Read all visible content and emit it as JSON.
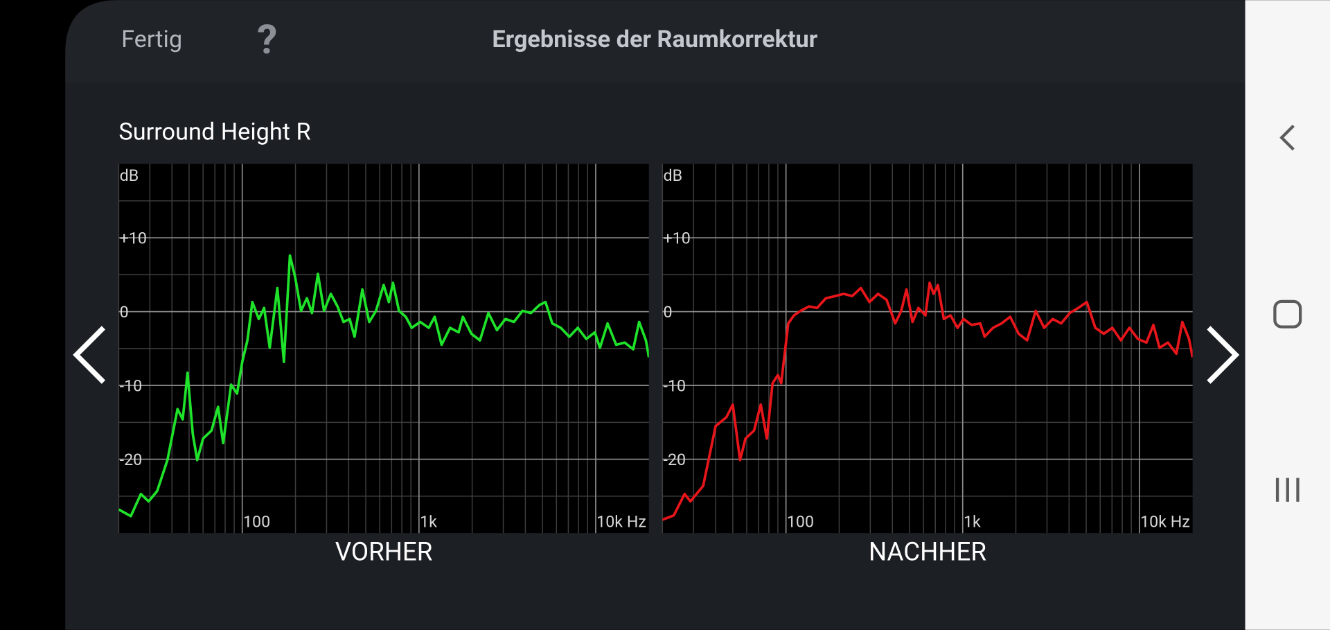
{
  "header": {
    "done": "Fertig",
    "help": "?",
    "title": "Ergebnisse der Raumkorrektur"
  },
  "channel": "Surround Height R",
  "chart_data": [
    {
      "type": "line",
      "title": "VORHER",
      "y_label": "dB",
      "log_x": true,
      "grid": true,
      "xlim": [
        20,
        20000
      ],
      "ylim": [
        -30,
        20
      ],
      "xticks": [
        100,
        {
          "value": 1000,
          "label": "1k"
        },
        {
          "value": 10000,
          "label": "10k Hz"
        }
      ],
      "xminor": [
        20,
        30,
        40,
        50,
        60,
        70,
        80,
        90,
        200,
        300,
        400,
        500,
        600,
        700,
        800,
        900,
        2000,
        3000,
        4000,
        5000,
        6000,
        7000,
        8000,
        9000
      ],
      "yticks": [
        -20,
        -10,
        0,
        {
          "value": 10,
          "label": "+10"
        }
      ],
      "yminor": [
        -25,
        -15,
        -5,
        5,
        15
      ],
      "x": [
        20,
        23.4,
        26.7,
        29.5,
        33,
        37.7,
        43,
        46,
        49,
        52.5,
        55.6,
        60,
        67,
        73,
        78,
        86.5,
        93.5,
        100,
        107,
        114,
        124,
        133,
        143,
        158,
        172,
        186,
        199,
        215,
        232,
        248,
        268,
        290,
        317,
        346,
        374,
        405,
        432,
        478,
        523,
        571,
        631,
        675,
        713,
        771,
        842,
        910,
        1016,
        1136,
        1227,
        1342,
        1500,
        1676,
        1772,
        1979,
        2213,
        2472,
        2762,
        3085,
        3446,
        3852,
        4303,
        4808,
        5200,
        5680,
        6345,
        7090,
        7920,
        8850,
        9890,
        10570,
        11680,
        13050,
        14590,
        16300,
        17620,
        19240,
        20000
      ],
      "series": [
        {
          "color": "#1fe32a",
          "values": [
            -26.8,
            -27.7,
            -24.7,
            -25.7,
            -24.3,
            -20.1,
            -13.2,
            -14.6,
            -8.3,
            -16.6,
            -20.1,
            -17.2,
            -16.1,
            -12.9,
            -17.8,
            -9.9,
            -11.1,
            -6.8,
            -3.9,
            1.3,
            -1.0,
            0.5,
            -4.9,
            3.2,
            -6.8,
            7.6,
            4.7,
            0.1,
            1.8,
            -0.2,
            5.1,
            0.1,
            2.4,
            0.7,
            -1.4,
            -1.0,
            -3.4,
            3.0,
            -1.4,
            0.1,
            3.6,
            1.3,
            3.9,
            0.1,
            -0.7,
            -2.2,
            -1.4,
            -2.2,
            -0.7,
            -4.5,
            -2.2,
            -2.8,
            -0.7,
            -3.0,
            -3.9,
            -0.2,
            -2.5,
            -1.0,
            -1.4,
            0.1,
            -0.2,
            0.9,
            1.3,
            -1.6,
            -2.2,
            -3.4,
            -2.2,
            -3.7,
            -2.8,
            -4.9,
            -1.6,
            -4.5,
            -4.2,
            -5.1,
            -1.4,
            -3.9,
            -6.2
          ]
        }
      ]
    },
    {
      "type": "line",
      "title": "NACHHER",
      "y_label": "dB",
      "log_x": true,
      "grid": true,
      "xlim": [
        20,
        20000
      ],
      "ylim": [
        -30,
        20
      ],
      "xticks": [
        100,
        {
          "value": 1000,
          "label": "1k"
        },
        {
          "value": 10000,
          "label": "10k Hz"
        }
      ],
      "xminor": [
        20,
        30,
        40,
        50,
        60,
        70,
        80,
        90,
        200,
        300,
        400,
        500,
        600,
        700,
        800,
        900,
        2000,
        3000,
        4000,
        5000,
        6000,
        7000,
        8000,
        9000
      ],
      "yticks": [
        -20,
        -10,
        0,
        {
          "value": 10,
          "label": "+10"
        }
      ],
      "yminor": [
        -25,
        -15,
        -5,
        5,
        15
      ],
      "x": [
        20,
        23.2,
        26.7,
        28.8,
        34,
        40,
        46,
        50,
        55,
        59,
        66,
        72,
        78,
        84,
        90,
        94,
        103,
        111,
        121,
        135,
        150,
        168,
        190,
        212,
        237,
        265,
        297,
        332,
        371,
        415,
        449,
        481,
        520,
        561,
        615,
        650,
        685,
        724,
        782,
        853,
        935,
        1010,
        1124,
        1256,
        1330,
        1485,
        1660,
        1855,
        2073,
        2316,
        2588,
        2891,
        3231,
        3611,
        4035,
        4509,
        5038,
        5630,
        6290,
        7030,
        7856,
        8780,
        9810,
        10960,
        12000,
        13000,
        14500,
        16200,
        17500,
        19100,
        20000
      ],
      "series": [
        {
          "color": "#e8161b",
          "values": [
            -28.2,
            -27.6,
            -24.7,
            -25.7,
            -23.6,
            -15.5,
            -14.3,
            -12.6,
            -20.1,
            -17.2,
            -16.1,
            -12.6,
            -17.2,
            -9.7,
            -8.6,
            -9.7,
            -1.6,
            -0.5,
            0.1,
            0.7,
            0.5,
            1.8,
            2.1,
            2.4,
            2.1,
            3.2,
            1.3,
            2.4,
            1.6,
            -1.6,
            0.1,
            3.0,
            -1.4,
            0.5,
            -0.5,
            3.9,
            2.4,
            3.6,
            -1.0,
            -0.5,
            -2.2,
            -1.0,
            -1.8,
            -1.6,
            -3.4,
            -2.2,
            -1.6,
            -0.7,
            -3.0,
            -3.9,
            0.1,
            -2.2,
            -1.0,
            -1.6,
            -0.2,
            0.5,
            1.3,
            -2.2,
            -3.0,
            -2.2,
            -3.9,
            -2.2,
            -3.7,
            -4.2,
            -1.8,
            -4.9,
            -4.2,
            -5.7,
            -1.4,
            -3.7,
            -6.2
          ]
        }
      ]
    }
  ]
}
